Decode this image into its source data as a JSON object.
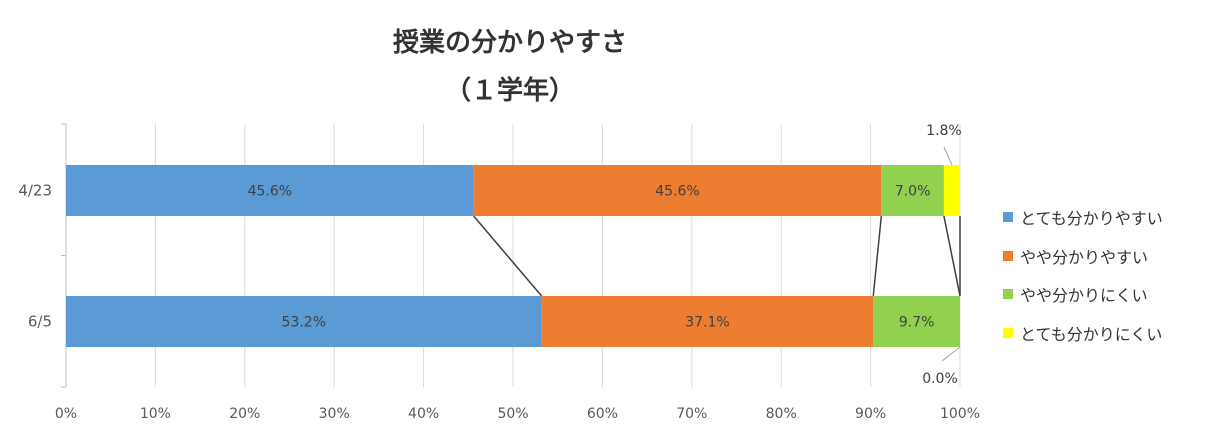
{
  "chart_data": {
    "type": "bar",
    "orientation": "horizontal",
    "stacked": "percent",
    "title": "授業の分かりやすさ",
    "subtitle": "（１学年）",
    "categories": [
      "4/23",
      "6/5"
    ],
    "series": [
      {
        "name": "とても分かりやすい",
        "color": "#5b9bd5",
        "values": [
          45.6,
          53.2
        ]
      },
      {
        "name": "やや分かりやすい",
        "color": "#ed7d31",
        "values": [
          45.6,
          37.1
        ]
      },
      {
        "name": "やや分かりにくい",
        "color": "#92d050",
        "values": [
          7.0,
          9.7
        ]
      },
      {
        "name": "とても分かりにくい",
        "color": "#ffff00",
        "values": [
          1.8,
          0.0
        ]
      }
    ],
    "data_labels": [
      [
        "45.6%",
        "45.6%",
        "7.0%",
        "1.8%"
      ],
      [
        "53.2%",
        "37.1%",
        "9.7%",
        "0.0%"
      ]
    ],
    "xticks": [
      "0%",
      "10%",
      "20%",
      "30%",
      "40%",
      "50%",
      "60%",
      "70%",
      "80%",
      "90%",
      "100%"
    ],
    "xlim": [
      0,
      100
    ],
    "grid": true,
    "series_lines": true,
    "legend": "right"
  }
}
